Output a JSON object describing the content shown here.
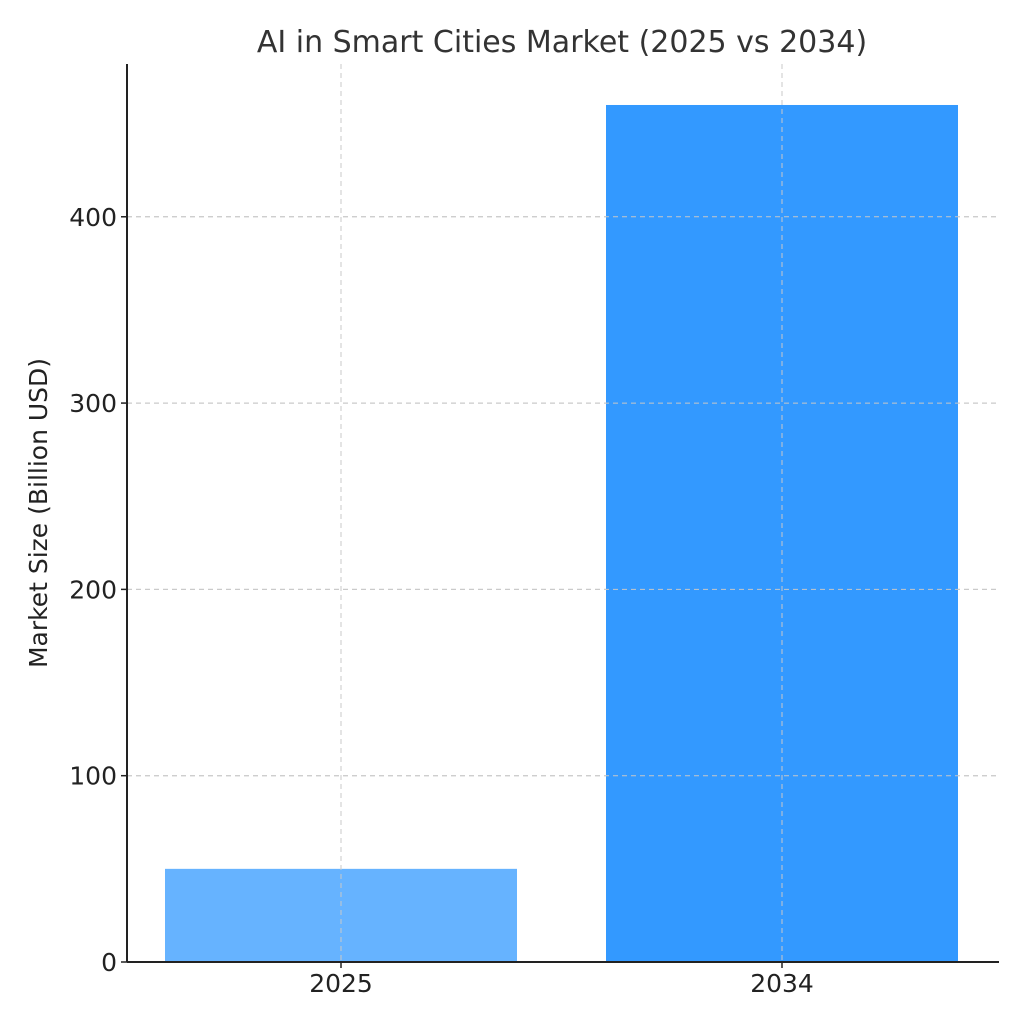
{
  "chart_data": {
    "type": "bar",
    "title": "AI in Smart Cities Market (2025 vs 2034)",
    "xlabel": "",
    "ylabel": "Market Size (Billion USD)",
    "categories": [
      "2025",
      "2034"
    ],
    "values": [
      50,
      460
    ],
    "bar_colors": [
      "#66b3ff",
      "#3399ff"
    ],
    "ylim": [
      0,
      482
    ],
    "yticks": [
      0,
      100,
      200,
      300,
      400
    ],
    "grid": true,
    "grid_axes": "both",
    "legend": "none"
  }
}
